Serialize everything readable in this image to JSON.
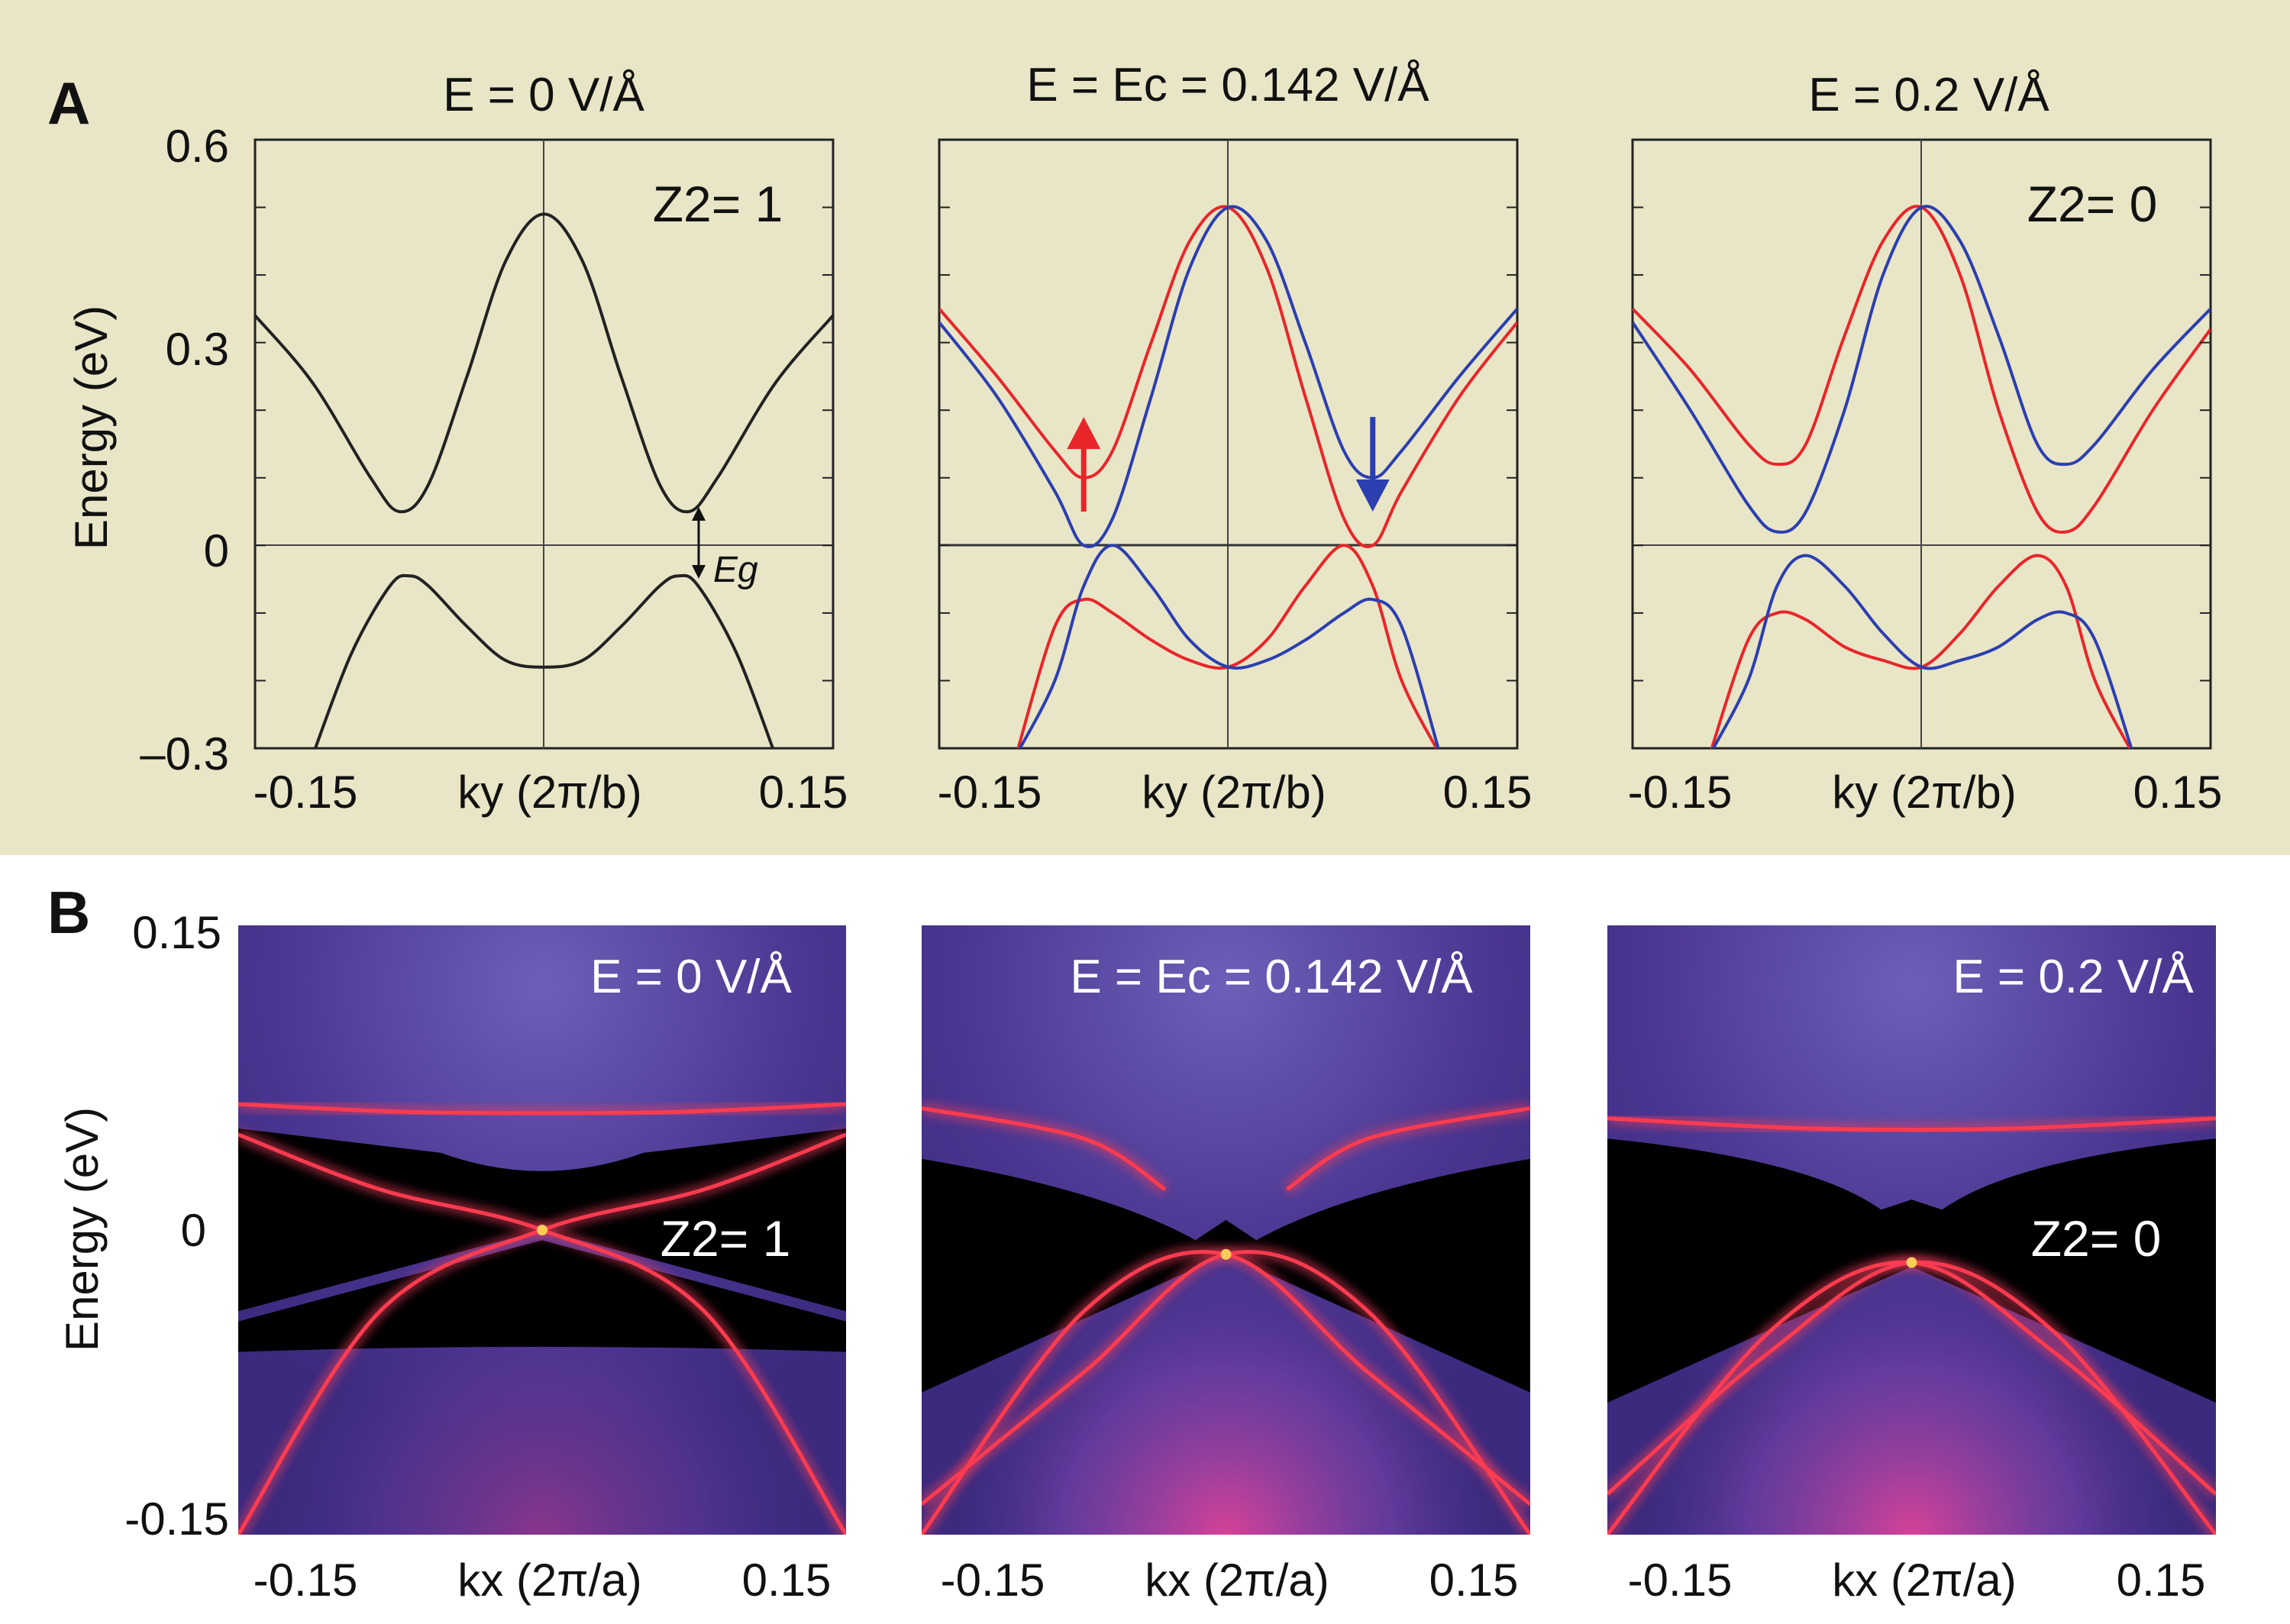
{
  "figure": {
    "panel_a_letter": "A",
    "panel_b_letter": "B",
    "colors": {
      "background_a": "#e9e5c7",
      "spin_up": "#e8262a",
      "spin_down": "#2b3fb0",
      "band_black": "#222222"
    }
  },
  "chart_data": [
    {
      "type": "line",
      "panel": "A",
      "title": "E = 0 V/Å",
      "xlabel": "ky (2π/b)",
      "ylabel": "Energy  (eV)",
      "xlim": [
        -0.15,
        0.15
      ],
      "ylim": [
        -0.3,
        0.6
      ],
      "xticks": [
        "-0.15",
        "0.15"
      ],
      "yticks": [
        "0.6",
        "0.3",
        "0",
        "–0.3"
      ],
      "annotation": "Z2= 1",
      "gap_label": "Eg",
      "series": [
        {
          "name": "conduction",
          "color": "#222222",
          "x": [
            -0.15,
            -0.12,
            -0.09,
            -0.075,
            -0.06,
            -0.04,
            -0.02,
            0,
            0.02,
            0.04,
            0.06,
            0.075,
            0.09,
            0.12,
            0.15
          ],
          "y": [
            0.34,
            0.24,
            0.1,
            0.05,
            0.09,
            0.25,
            0.42,
            0.49,
            0.42,
            0.25,
            0.09,
            0.05,
            0.1,
            0.24,
            0.34
          ]
        },
        {
          "name": "valence",
          "color": "#222222",
          "x": [
            -0.12,
            -0.1,
            -0.08,
            -0.07,
            -0.06,
            -0.04,
            -0.02,
            0,
            0.02,
            0.04,
            0.06,
            0.07,
            0.08,
            0.1,
            0.12
          ],
          "y": [
            -0.31,
            -0.16,
            -0.06,
            -0.045,
            -0.06,
            -0.12,
            -0.17,
            -0.18,
            -0.17,
            -0.12,
            -0.06,
            -0.045,
            -0.06,
            -0.16,
            -0.31
          ]
        }
      ]
    },
    {
      "type": "line",
      "panel": "A",
      "title": "E = Ec = 0.142 V/Å",
      "xlabel": "ky (2π/b)",
      "xlim": [
        -0.15,
        0.15
      ],
      "ylim": [
        -0.3,
        0.6
      ],
      "xticks": [
        "-0.15",
        "0.15"
      ],
      "series": [
        {
          "name": "red-upper",
          "color": "#e8262a",
          "x": [
            -0.15,
            -0.12,
            -0.09,
            -0.075,
            -0.06,
            -0.04,
            -0.02,
            0,
            0.02,
            0.04,
            0.06,
            0.075,
            0.09,
            0.12,
            0.15
          ],
          "y": [
            0.35,
            0.25,
            0.14,
            0.1,
            0.14,
            0.3,
            0.45,
            0.5,
            0.41,
            0.22,
            0.04,
            0.0,
            0.08,
            0.22,
            0.33
          ]
        },
        {
          "name": "blue-upper",
          "color": "#2b3fb0",
          "x": [
            -0.15,
            -0.12,
            -0.09,
            -0.075,
            -0.06,
            -0.04,
            -0.02,
            0,
            0.02,
            0.04,
            0.06,
            0.075,
            0.09,
            0.12,
            0.15
          ],
          "y": [
            0.33,
            0.22,
            0.08,
            0.0,
            0.04,
            0.22,
            0.41,
            0.5,
            0.45,
            0.3,
            0.14,
            0.1,
            0.14,
            0.25,
            0.35
          ]
        },
        {
          "name": "red-lower",
          "color": "#e8262a",
          "x": [
            -0.11,
            -0.09,
            -0.075,
            -0.06,
            -0.04,
            -0.02,
            0,
            0.02,
            0.04,
            0.06,
            0.075,
            0.09,
            0.11
          ],
          "y": [
            -0.31,
            -0.12,
            -0.08,
            -0.1,
            -0.14,
            -0.17,
            -0.18,
            -0.14,
            -0.06,
            0.0,
            -0.06,
            -0.2,
            -0.31
          ]
        },
        {
          "name": "blue-lower",
          "color": "#2b3fb0",
          "x": [
            -0.11,
            -0.09,
            -0.075,
            -0.06,
            -0.04,
            -0.02,
            0,
            0.02,
            0.04,
            0.06,
            0.075,
            0.09,
            0.11
          ],
          "y": [
            -0.31,
            -0.2,
            -0.06,
            0.0,
            -0.06,
            -0.14,
            -0.18,
            -0.17,
            -0.14,
            -0.1,
            -0.08,
            -0.12,
            -0.31
          ]
        }
      ],
      "arrows": [
        {
          "spin": "up",
          "color": "#e8262a",
          "x": -0.075,
          "y_from": 0.05,
          "y_to": 0.19
        },
        {
          "spin": "down",
          "color": "#2b3fb0",
          "x": 0.075,
          "y_from": 0.19,
          "y_to": 0.05
        }
      ]
    },
    {
      "type": "line",
      "panel": "A",
      "title": "E = 0.2 V/Å",
      "xlabel": "ky (2π/b)",
      "xlim": [
        -0.15,
        0.15
      ],
      "ylim": [
        -0.3,
        0.6
      ],
      "xticks": [
        "-0.15",
        "0.15"
      ],
      "annotation": "Z2= 0",
      "series": [
        {
          "name": "red-upper",
          "color": "#e8262a",
          "x": [
            -0.15,
            -0.12,
            -0.09,
            -0.075,
            -0.06,
            -0.04,
            -0.02,
            0,
            0.02,
            0.04,
            0.06,
            0.075,
            0.09,
            0.12,
            0.15
          ],
          "y": [
            0.35,
            0.26,
            0.15,
            0.12,
            0.15,
            0.31,
            0.45,
            0.5,
            0.4,
            0.2,
            0.05,
            0.02,
            0.06,
            0.2,
            0.32
          ]
        },
        {
          "name": "blue-upper",
          "color": "#2b3fb0",
          "x": [
            -0.15,
            -0.12,
            -0.09,
            -0.075,
            -0.06,
            -0.04,
            -0.02,
            0,
            0.02,
            0.04,
            0.06,
            0.075,
            0.09,
            0.12,
            0.15
          ],
          "y": [
            0.33,
            0.2,
            0.06,
            0.02,
            0.05,
            0.2,
            0.4,
            0.5,
            0.45,
            0.31,
            0.15,
            0.12,
            0.15,
            0.26,
            0.35
          ]
        },
        {
          "name": "red-lower",
          "color": "#e8262a",
          "x": [
            -0.11,
            -0.09,
            -0.075,
            -0.06,
            -0.04,
            -0.02,
            0,
            0.02,
            0.04,
            0.06,
            0.075,
            0.09,
            0.11
          ],
          "y": [
            -0.31,
            -0.14,
            -0.1,
            -0.11,
            -0.15,
            -0.17,
            -0.18,
            -0.13,
            -0.06,
            -0.015,
            -0.06,
            -0.2,
            -0.31
          ]
        },
        {
          "name": "blue-lower",
          "color": "#2b3fb0",
          "x": [
            -0.11,
            -0.09,
            -0.075,
            -0.06,
            -0.04,
            -0.02,
            0,
            0.02,
            0.04,
            0.06,
            0.075,
            0.09,
            0.11
          ],
          "y": [
            -0.31,
            -0.2,
            -0.06,
            -0.015,
            -0.06,
            -0.13,
            -0.18,
            -0.17,
            -0.15,
            -0.11,
            -0.1,
            -0.14,
            -0.31
          ]
        }
      ]
    },
    {
      "type": "heatmap",
      "panel": "B",
      "title": "E = 0 V/Å",
      "xlabel": "kx (2π/a)",
      "ylabel": "Energy  (eV)",
      "xlim": [
        -0.15,
        0.15
      ],
      "ylim": [
        -0.15,
        0.15
      ],
      "xticks": [
        "-0.15",
        "0.15"
      ],
      "yticks": [
        "0.15",
        "0",
        "-0.15"
      ],
      "annotation": "Z2= 1",
      "dirac_point": [
        0.0,
        0.0
      ]
    },
    {
      "type": "heatmap",
      "panel": "B",
      "title": "E = Ec = 0.142 V/Å",
      "xlabel": "kx (2π/a)",
      "xlim": [
        -0.15,
        0.15
      ],
      "ylim": [
        -0.15,
        0.15
      ],
      "xticks": [
        "-0.15",
        "0.15"
      ],
      "dirac_point": [
        0.0,
        -0.012
      ]
    },
    {
      "type": "heatmap",
      "panel": "B",
      "title": "E = 0.2 V/Å",
      "xlabel": "kx (2π/a)",
      "xlim": [
        -0.15,
        0.15
      ],
      "ylim": [
        -0.15,
        0.15
      ],
      "xticks": [
        "-0.15",
        "0.15"
      ],
      "annotation": "Z2= 0",
      "dirac_point": [
        0.0,
        -0.016
      ]
    }
  ]
}
